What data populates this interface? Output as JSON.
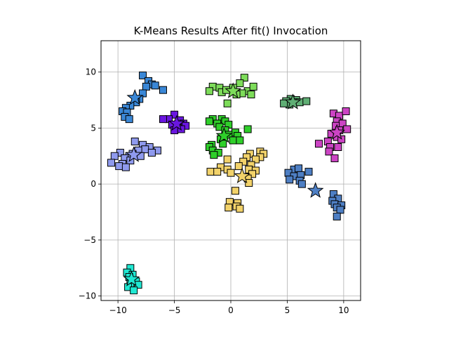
{
  "chart_data": {
    "type": "scatter",
    "title": "K-Means Results After fit() Invocation",
    "xlabel": "",
    "ylabel": "",
    "xlim": [
      -11.5,
      11.5
    ],
    "ylim": [
      -10.4,
      12.8
    ],
    "xticks": [
      -10,
      -5,
      0,
      5,
      10
    ],
    "yticks": [
      -10,
      -5,
      0,
      5,
      10
    ],
    "xtick_labels": [
      "−10",
      "−5",
      "0",
      "5",
      "10"
    ],
    "ytick_labels": [
      "−10",
      "−5",
      "0",
      "5",
      "10"
    ],
    "grid": true,
    "clusters": [
      {
        "color": "#3a87d6",
        "centroid": [
          -8.5,
          7.7
        ],
        "points": [
          [
            -7.8,
            9.7
          ],
          [
            -7.3,
            9.2
          ],
          [
            -7.0,
            8.9
          ],
          [
            -6.7,
            8.8
          ],
          [
            -7.5,
            8.7
          ],
          [
            -6.0,
            8.4
          ],
          [
            -7.8,
            8.1
          ],
          [
            -8.1,
            7.6
          ],
          [
            -8.4,
            7.3
          ],
          [
            -8.9,
            7.0
          ],
          [
            -9.3,
            6.8
          ],
          [
            -9.6,
            6.5
          ],
          [
            -9.2,
            6.4
          ],
          [
            -9.4,
            6.0
          ],
          [
            -9.0,
            5.8
          ]
        ]
      },
      {
        "color": "#6a16e0",
        "centroid": [
          -4.8,
          5.4
        ],
        "points": [
          [
            -5.0,
            6.2
          ],
          [
            -5.5,
            5.8
          ],
          [
            -6.0,
            5.8
          ],
          [
            -4.5,
            5.7
          ],
          [
            -4.2,
            5.4
          ],
          [
            -5.2,
            5.3
          ],
          [
            -4.0,
            5.2
          ],
          [
            -4.7,
            5.0
          ],
          [
            -5.0,
            4.8
          ],
          [
            -4.4,
            4.9
          ]
        ]
      },
      {
        "color": "#8f9aee",
        "centroid": [
          -8.6,
          2.6
        ],
        "points": [
          [
            -8.5,
            3.8
          ],
          [
            -7.8,
            3.5
          ],
          [
            -7.2,
            3.3
          ],
          [
            -7.6,
            3.1
          ],
          [
            -8.2,
            3.0
          ],
          [
            -6.5,
            3.0
          ],
          [
            -7.0,
            2.8
          ],
          [
            -9.8,
            2.8
          ],
          [
            -8.7,
            2.7
          ],
          [
            -9.0,
            2.5
          ],
          [
            -8.0,
            2.5
          ],
          [
            -10.3,
            2.5
          ],
          [
            -9.4,
            2.3
          ],
          [
            -8.9,
            2.1
          ],
          [
            -9.6,
            1.8
          ],
          [
            -10.6,
            1.9
          ],
          [
            -9.9,
            1.6
          ],
          [
            -9.3,
            1.5
          ]
        ]
      },
      {
        "color": "#7ddc5a",
        "centroid": [
          0.2,
          8.3
        ],
        "points": [
          [
            1.2,
            9.5
          ],
          [
            0.8,
            9.0
          ],
          [
            -1.6,
            8.7
          ],
          [
            -1.9,
            8.3
          ],
          [
            -1.0,
            8.6
          ],
          [
            -0.8,
            8.2
          ],
          [
            0.2,
            8.6
          ],
          [
            1.5,
            8.3
          ],
          [
            2.0,
            8.7
          ],
          [
            1.0,
            8.1
          ],
          [
            0.5,
            8.0
          ],
          [
            -0.4,
            8.4
          ],
          [
            1.8,
            8.0
          ],
          [
            -0.3,
            7.2
          ]
        ]
      },
      {
        "color": "#2fcf2a",
        "centroid": [
          -0.6,
          4.3
        ],
        "points": [
          [
            -1.6,
            5.8
          ],
          [
            -0.8,
            5.8
          ],
          [
            -1.9,
            5.6
          ],
          [
            -0.5,
            5.6
          ],
          [
            -1.2,
            5.4
          ],
          [
            -0.2,
            5.3
          ],
          [
            -1.0,
            5.1
          ],
          [
            -0.5,
            4.8
          ],
          [
            1.5,
            4.9
          ],
          [
            0.4,
            4.6
          ],
          [
            -0.2,
            4.4
          ],
          [
            0.6,
            4.3
          ],
          [
            -0.9,
            4.0
          ],
          [
            0.2,
            3.9
          ],
          [
            -1.7,
            3.5
          ],
          [
            -1.9,
            3.3
          ],
          [
            -0.7,
            3.6
          ],
          [
            0.8,
            3.9
          ],
          [
            -1.6,
            3.0
          ],
          [
            -1.1,
            2.8
          ],
          [
            -1.5,
            2.6
          ]
        ]
      },
      {
        "color": "#f2d26a",
        "centroid": [
          1.0,
          0.7
        ],
        "points": [
          [
            2.6,
            2.9
          ],
          [
            2.9,
            2.7
          ],
          [
            1.7,
            2.7
          ],
          [
            1.4,
            2.4
          ],
          [
            2.6,
            2.4
          ],
          [
            2.2,
            2.2
          ],
          [
            -0.3,
            2.2
          ],
          [
            1.1,
            2.0
          ],
          [
            1.8,
            1.7
          ],
          [
            0.7,
            1.6
          ],
          [
            -0.9,
            1.5
          ],
          [
            -0.3,
            1.3
          ],
          [
            1.6,
            1.3
          ],
          [
            2.2,
            1.2
          ],
          [
            -1.8,
            1.1
          ],
          [
            -1.2,
            1.1
          ],
          [
            0.0,
            1.0
          ],
          [
            1.9,
            0.9
          ],
          [
            1.5,
            0.5
          ],
          [
            1.6,
            0.1
          ],
          [
            0.4,
            -0.6
          ],
          [
            -0.1,
            -1.6
          ],
          [
            0.6,
            -1.7
          ],
          [
            -0.2,
            -2.1
          ],
          [
            0.5,
            -2.0
          ],
          [
            0.8,
            -2.2
          ]
        ]
      },
      {
        "color": "#5fae74",
        "centroid": [
          5.5,
          7.3
        ],
        "points": [
          [
            5.3,
            7.6
          ],
          [
            5.8,
            7.5
          ],
          [
            4.9,
            7.4
          ],
          [
            5.6,
            7.3
          ],
          [
            6.1,
            7.3
          ],
          [
            5.2,
            7.1
          ],
          [
            4.7,
            7.2
          ],
          [
            6.7,
            7.4
          ]
        ]
      },
      {
        "color": "#cc44c4",
        "centroid": [
          9.4,
          4.6
        ],
        "points": [
          [
            9.1,
            6.3
          ],
          [
            9.6,
            6.1
          ],
          [
            10.2,
            6.5
          ],
          [
            9.4,
            5.6
          ],
          [
            9.9,
            5.4
          ],
          [
            9.3,
            5.2
          ],
          [
            10.3,
            4.9
          ],
          [
            9.6,
            4.8
          ],
          [
            8.9,
            4.5
          ],
          [
            9.4,
            4.2
          ],
          [
            9.8,
            4.0
          ],
          [
            8.6,
            3.8
          ],
          [
            7.8,
            3.6
          ],
          [
            8.8,
            3.3
          ],
          [
            9.5,
            3.3
          ],
          [
            8.7,
            2.9
          ],
          [
            9.2,
            2.3
          ]
        ]
      },
      {
        "color": "#4e7fc4",
        "centroid": [
          7.5,
          -0.6
        ],
        "points": [
          [
            5.6,
            1.3
          ],
          [
            6.0,
            1.4
          ],
          [
            5.1,
            1.0
          ],
          [
            5.6,
            0.7
          ],
          [
            6.9,
            1.1
          ],
          [
            6.2,
            0.8
          ],
          [
            5.2,
            0.4
          ],
          [
            6.1,
            0.3
          ],
          [
            6.3,
            0.0
          ],
          [
            9.1,
            -0.9
          ],
          [
            9.5,
            -1.3
          ],
          [
            9.0,
            -1.5
          ],
          [
            9.2,
            -1.8
          ],
          [
            9.8,
            -1.9
          ],
          [
            9.4,
            -2.1
          ],
          [
            9.7,
            -2.3
          ],
          [
            9.4,
            -2.9
          ]
        ]
      },
      {
        "color": "#1fe8d2",
        "centroid": [
          -8.8,
          -8.5
        ],
        "points": [
          [
            -8.9,
            -7.5
          ],
          [
            -9.2,
            -7.9
          ],
          [
            -8.7,
            -8.1
          ],
          [
            -9.0,
            -8.3
          ],
          [
            -8.4,
            -8.7
          ],
          [
            -8.9,
            -8.9
          ],
          [
            -8.2,
            -9.0
          ],
          [
            -9.1,
            -9.2
          ],
          [
            -8.6,
            -9.5
          ]
        ]
      }
    ]
  }
}
